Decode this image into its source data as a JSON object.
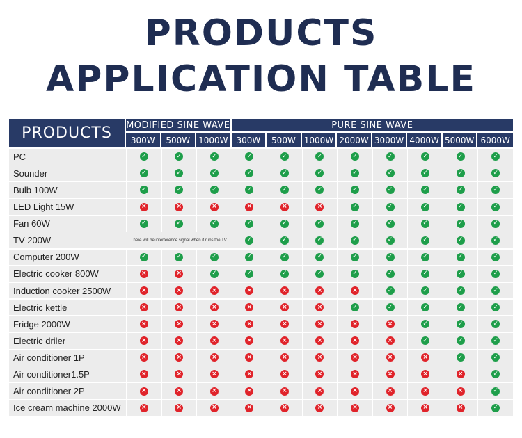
{
  "title": {
    "line1": "PRODUCTS",
    "line2": "APPLICATION TABLE"
  },
  "header": {
    "products": "PRODUCTS",
    "modified": "MODIFIED SINE WAVE",
    "pure": "PURE SINE WAVE",
    "watts": [
      "300W",
      "500W",
      "1000W",
      "300W",
      "500W",
      "1000W",
      "2000W",
      "3000W",
      "4000W",
      "5000W",
      "6000W"
    ]
  },
  "colors": {
    "header_bg": "#283a66",
    "ok": "#1e9e4a",
    "no": "#e0232a",
    "row_bg": "#ececec"
  },
  "icons": {
    "ok": "check-circle-icon",
    "no": "cross-circle-icon"
  },
  "rows": [
    {
      "name": "PC",
      "cells": [
        1,
        1,
        1,
        1,
        1,
        1,
        1,
        1,
        1,
        1,
        1
      ]
    },
    {
      "name": "Sounder",
      "cells": [
        1,
        1,
        1,
        1,
        1,
        1,
        1,
        1,
        1,
        1,
        1
      ]
    },
    {
      "name": "Bulb 100W",
      "cells": [
        1,
        1,
        1,
        1,
        1,
        1,
        1,
        1,
        1,
        1,
        1
      ]
    },
    {
      "name": "LED Light 15W",
      "cells": [
        0,
        0,
        0,
        0,
        0,
        0,
        1,
        1,
        1,
        1,
        1
      ]
    },
    {
      "name": "Fan 60W",
      "cells": [
        1,
        1,
        1,
        1,
        1,
        1,
        1,
        1,
        1,
        1,
        1
      ]
    },
    {
      "name": "TV 200W",
      "note": "There will be interference signal when it runs the TV",
      "cells": [
        null,
        null,
        null,
        1,
        1,
        1,
        1,
        1,
        1,
        1,
        1
      ]
    },
    {
      "name": "Computer 200W",
      "cells": [
        1,
        1,
        1,
        1,
        1,
        1,
        1,
        1,
        1,
        1,
        1
      ]
    },
    {
      "name": "Electric cooker 800W",
      "cells": [
        0,
        0,
        1,
        1,
        1,
        1,
        1,
        1,
        1,
        1,
        1
      ]
    },
    {
      "name": "Induction cooker 2500W",
      "cells": [
        0,
        0,
        0,
        0,
        0,
        0,
        0,
        1,
        1,
        1,
        1
      ]
    },
    {
      "name": "Electric kettle",
      "cells": [
        0,
        0,
        0,
        0,
        0,
        0,
        1,
        1,
        1,
        1,
        1
      ]
    },
    {
      "name": "Fridge 2000W",
      "cells": [
        0,
        0,
        0,
        0,
        0,
        0,
        0,
        0,
        1,
        1,
        1
      ]
    },
    {
      "name": "Electric driler",
      "cells": [
        0,
        0,
        0,
        0,
        0,
        0,
        0,
        0,
        1,
        1,
        1
      ]
    },
    {
      "name": "Air conditioner 1P",
      "cells": [
        0,
        0,
        0,
        0,
        0,
        0,
        0,
        0,
        0,
        1,
        1
      ]
    },
    {
      "name": "Air conditioner1.5P",
      "cells": [
        0,
        0,
        0,
        0,
        0,
        0,
        0,
        0,
        0,
        0,
        1
      ]
    },
    {
      "name": "Air conditioner 2P",
      "cells": [
        0,
        0,
        0,
        0,
        0,
        0,
        0,
        0,
        0,
        0,
        1
      ]
    },
    {
      "name": "Ice cream machine 2000W",
      "cells": [
        0,
        0,
        0,
        0,
        0,
        0,
        0,
        0,
        0,
        0,
        1
      ]
    }
  ]
}
